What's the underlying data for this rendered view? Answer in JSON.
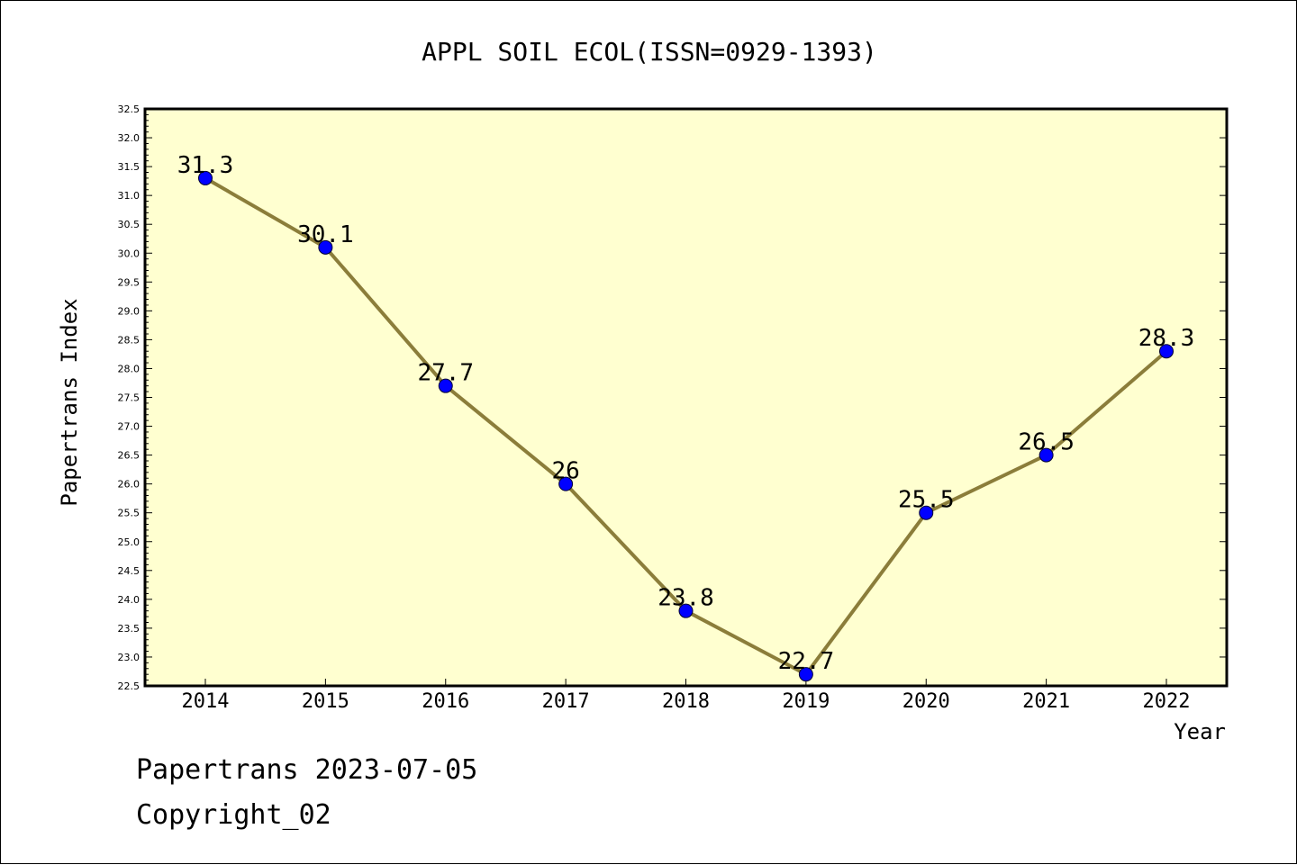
{
  "chart_data": {
    "type": "line",
    "title": "APPL SOIL ECOL(ISSN=0929-1393)",
    "xlabel": "Year",
    "ylabel": "Papertrans Index",
    "categories": [
      "2014",
      "2015",
      "2016",
      "2017",
      "2018",
      "2019",
      "2020",
      "2021",
      "2022"
    ],
    "values": [
      31.3,
      30.1,
      27.7,
      26.0,
      23.8,
      22.7,
      25.5,
      26.5,
      28.3
    ],
    "data_labels": [
      "31.3",
      "30.1",
      "27.7",
      "26",
      "23.8",
      "22.7",
      "25.5",
      "26.5",
      "28.3"
    ],
    "ylim": [
      22.5,
      32.5
    ],
    "ytick_step": 0.5,
    "grid": false,
    "colors": {
      "plot_background": "#ffffd0",
      "line": "#8b7d3a",
      "marker": "#0000ff"
    }
  },
  "footer": {
    "line1": "Papertrans 2023-07-05",
    "line2": "Copyright_02"
  }
}
